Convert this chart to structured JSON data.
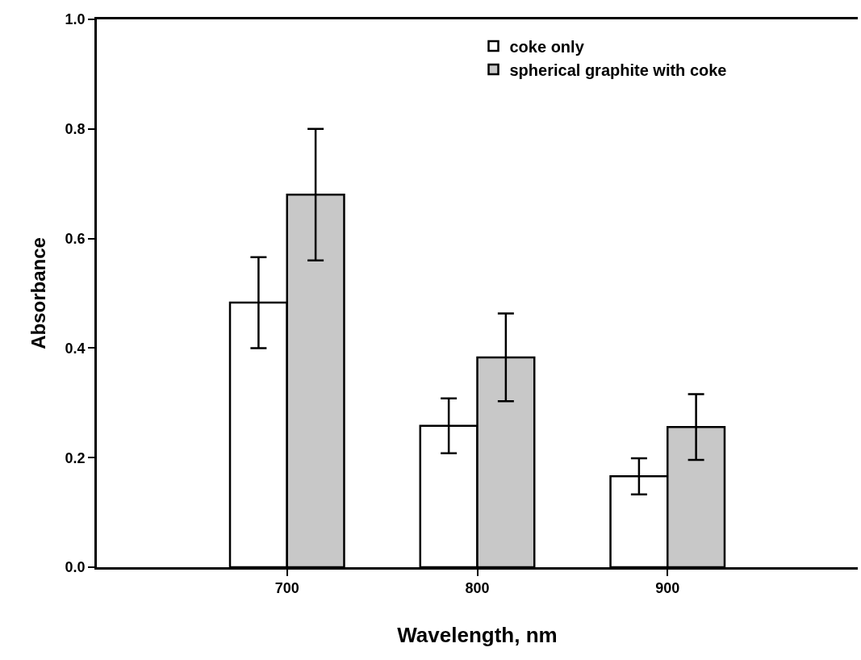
{
  "chart_data": {
    "type": "bar",
    "xlabel": "Wavelength, nm",
    "ylabel": "Absorbance",
    "x": [
      700,
      800,
      900
    ],
    "series": [
      {
        "name": "coke only",
        "color": "#ffffff",
        "values": [
          0.483,
          0.258,
          0.166
        ],
        "errors": [
          0.083,
          0.05,
          0.033
        ]
      },
      {
        "name": "spherical graphite with coke",
        "color": "#c8c8c8",
        "values": [
          0.68,
          0.383,
          0.256
        ],
        "errors": [
          0.12,
          0.08,
          0.06
        ]
      }
    ],
    "xlim": [
      600,
      1000
    ],
    "xticks": [
      700,
      800,
      900
    ],
    "ylim": [
      0,
      1.0
    ],
    "yticks": [
      {
        "value": 0,
        "label": "0.0"
      },
      0.2,
      0.4,
      0.6,
      0.8,
      {
        "value": 1.0,
        "label": "1.0"
      }
    ],
    "legend": "top right"
  }
}
